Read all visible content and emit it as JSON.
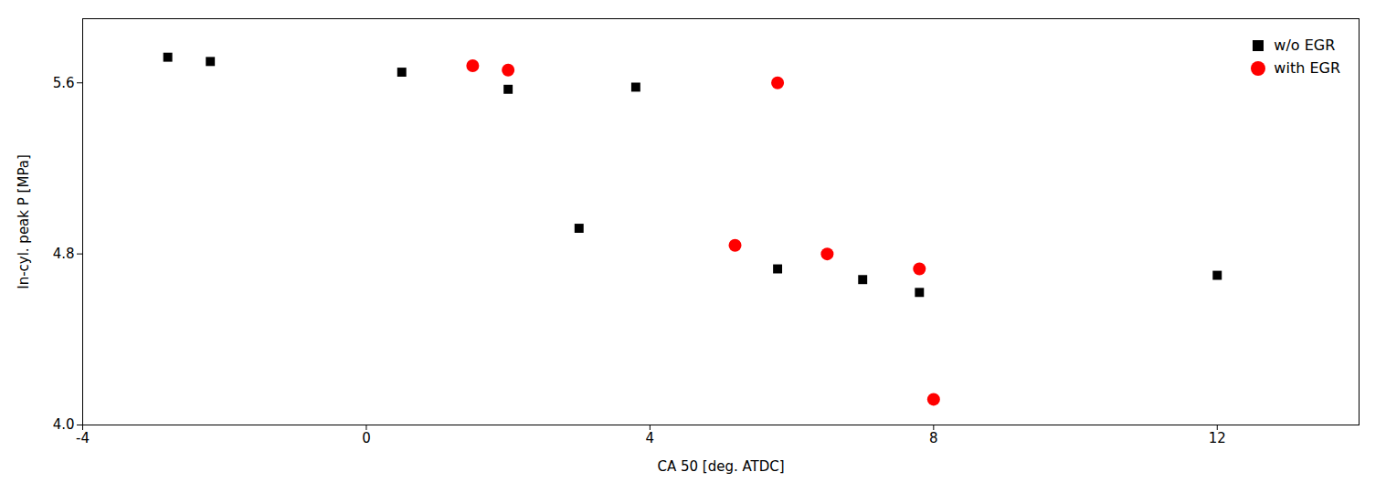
{
  "chart_data": {
    "type": "scatter",
    "xlabel": "CA 50 [deg. ATDC]",
    "ylabel": "In-cyl. peak P [MPa]",
    "series": [
      {
        "name": "w/o EGR",
        "color": "black",
        "marker": "square",
        "x": [
          -2.8,
          -2.2,
          0.5,
          2.0,
          3.0,
          3.8,
          5.8,
          7.0,
          7.8,
          12.0
        ],
        "values": [
          5.72,
          5.7,
          5.65,
          5.57,
          4.92,
          5.58,
          4.73,
          4.68,
          4.62,
          4.7
        ]
      },
      {
        "name": "with EGR",
        "color": "red",
        "marker": "circle",
        "x": [
          1.5,
          2.0,
          5.2,
          5.8,
          6.5,
          7.8,
          8.0
        ],
        "values": [
          5.68,
          5.66,
          4.84,
          5.6,
          4.8,
          4.73,
          4.12
        ]
      }
    ],
    "xlim": [
      -4,
      14
    ],
    "ylim": [
      4.0,
      5.9
    ],
    "xticks": [
      -4,
      0,
      4,
      8,
      12
    ],
    "yticks": [
      {
        "value": 4.0,
        "label": "4.0"
      },
      4.8,
      5.6
    ],
    "grid": false,
    "legend": "upper right"
  }
}
